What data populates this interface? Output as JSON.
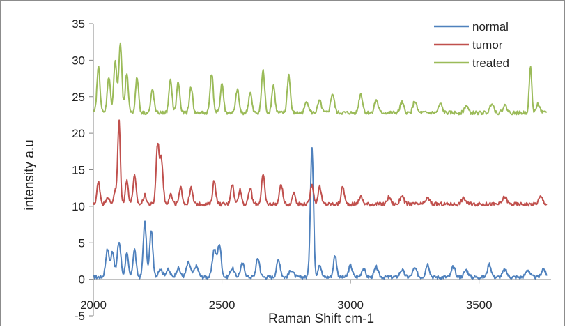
{
  "chart_data": {
    "type": "line",
    "title": "",
    "xlabel": "Raman Shift cm-1",
    "ylabel": "intensity a.u",
    "xlim": [
      2000,
      3780
    ],
    "ylim": [
      -5,
      35
    ],
    "x_ticks": [
      2000,
      2500,
      3000,
      3500
    ],
    "y_ticks": [
      -5,
      0,
      5,
      10,
      15,
      20,
      25,
      30,
      35
    ],
    "grid": false,
    "legend_position": "top-right",
    "series": [
      {
        "name": "normal",
        "color": "#4f81bd",
        "baseline": 0.3,
        "peaks": [
          [
            2055,
            3.8,
            7
          ],
          [
            2075,
            3.5,
            6
          ],
          [
            2100,
            4.8,
            7
          ],
          [
            2130,
            3.2,
            6
          ],
          [
            2160,
            3.8,
            6
          ],
          [
            2200,
            7.5,
            6
          ],
          [
            2225,
            6.5,
            6
          ],
          [
            2260,
            1.2,
            8
          ],
          [
            2290,
            1.0,
            8
          ],
          [
            2330,
            1.2,
            8
          ],
          [
            2370,
            2.0,
            8
          ],
          [
            2400,
            1.5,
            8
          ],
          [
            2470,
            3.8,
            7
          ],
          [
            2490,
            4.5,
            7
          ],
          [
            2540,
            1.2,
            8
          ],
          [
            2580,
            1.8,
            8
          ],
          [
            2640,
            2.6,
            7
          ],
          [
            2720,
            2.4,
            7
          ],
          [
            2770,
            1.0,
            8
          ],
          [
            2850,
            17.8,
            6
          ],
          [
            2880,
            1.8,
            6
          ],
          [
            2940,
            3.0,
            6
          ],
          [
            3000,
            1.6,
            7
          ],
          [
            3050,
            1.2,
            7
          ],
          [
            3100,
            1.4,
            7
          ],
          [
            3200,
            1.0,
            8
          ],
          [
            3250,
            1.2,
            8
          ],
          [
            3300,
            1.8,
            7
          ],
          [
            3400,
            1.4,
            7
          ],
          [
            3450,
            1.0,
            8
          ],
          [
            3540,
            1.8,
            7
          ],
          [
            3600,
            1.0,
            8
          ],
          [
            3690,
            1.0,
            8
          ],
          [
            3750,
            1.2,
            7
          ]
        ]
      },
      {
        "name": "tumor",
        "color": "#c0504d",
        "baseline": 10.3,
        "peaks": [
          [
            2020,
            3.0,
            6
          ],
          [
            2055,
            1.0,
            6
          ],
          [
            2085,
            1.8,
            6
          ],
          [
            2100,
            11.3,
            5
          ],
          [
            2130,
            3.2,
            6
          ],
          [
            2160,
            3.8,
            6
          ],
          [
            2200,
            1.2,
            6
          ],
          [
            2250,
            8.2,
            6
          ],
          [
            2265,
            6.0,
            6
          ],
          [
            2300,
            1.4,
            6
          ],
          [
            2340,
            2.2,
            6
          ],
          [
            2380,
            2.2,
            6
          ],
          [
            2470,
            3.2,
            6
          ],
          [
            2540,
            2.8,
            6
          ],
          [
            2570,
            2.0,
            6
          ],
          [
            2610,
            2.2,
            6
          ],
          [
            2660,
            4.0,
            6
          ],
          [
            2730,
            2.8,
            6
          ],
          [
            2780,
            1.6,
            6
          ],
          [
            2850,
            2.8,
            6
          ],
          [
            2880,
            2.4,
            6
          ],
          [
            2970,
            2.4,
            6
          ],
          [
            3040,
            1.0,
            7
          ],
          [
            3150,
            1.0,
            7
          ],
          [
            3200,
            1.2,
            7
          ],
          [
            3300,
            0.8,
            8
          ],
          [
            3440,
            0.8,
            8
          ],
          [
            3600,
            1.0,
            8
          ],
          [
            3740,
            1.0,
            8
          ]
        ]
      },
      {
        "name": "treated",
        "color": "#9bbb59",
        "baseline": 22.8,
        "peaks": [
          [
            2020,
            6.2,
            6
          ],
          [
            2060,
            5.0,
            6
          ],
          [
            2085,
            7.0,
            6
          ],
          [
            2105,
            9.4,
            6
          ],
          [
            2130,
            5.2,
            6
          ],
          [
            2170,
            4.8,
            6
          ],
          [
            2230,
            3.2,
            6
          ],
          [
            2300,
            4.4,
            6
          ],
          [
            2330,
            4.2,
            6
          ],
          [
            2380,
            3.6,
            6
          ],
          [
            2460,
            5.4,
            6
          ],
          [
            2500,
            4.0,
            6
          ],
          [
            2560,
            3.2,
            6
          ],
          [
            2610,
            2.8,
            6
          ],
          [
            2660,
            5.8,
            6
          ],
          [
            2700,
            3.8,
            6
          ],
          [
            2760,
            5.2,
            6
          ],
          [
            2830,
            1.6,
            7
          ],
          [
            2880,
            1.6,
            7
          ],
          [
            2930,
            2.6,
            7
          ],
          [
            3040,
            2.6,
            7
          ],
          [
            3100,
            1.8,
            7
          ],
          [
            3200,
            1.4,
            7
          ],
          [
            3250,
            1.6,
            7
          ],
          [
            3350,
            1.2,
            7
          ],
          [
            3450,
            1.0,
            7
          ],
          [
            3550,
            1.4,
            7
          ],
          [
            3600,
            1.0,
            8
          ],
          [
            3700,
            6.2,
            5
          ],
          [
            3730,
            1.2,
            7
          ]
        ]
      }
    ]
  }
}
